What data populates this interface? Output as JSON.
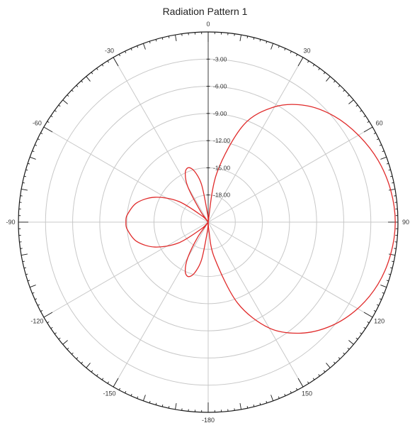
{
  "chart_data": {
    "type": "polar-line",
    "title": "Radiation Pattern 1",
    "angle_tick_labels": [
      {
        "angle": 0,
        "label": "0"
      },
      {
        "angle": 30,
        "label": "30"
      },
      {
        "angle": 60,
        "label": "60"
      },
      {
        "angle": 90,
        "label": "90"
      },
      {
        "angle": 120,
        "label": "120"
      },
      {
        "angle": 150,
        "label": "150"
      },
      {
        "angle": 180,
        "label": "-180"
      },
      {
        "angle": -150,
        "label": "-150"
      },
      {
        "angle": -120,
        "label": "-120"
      },
      {
        "angle": -90,
        "label": "-90"
      },
      {
        "angle": -60,
        "label": "-60"
      },
      {
        "angle": -30,
        "label": "-30"
      }
    ],
    "radial_range_db": [
      -21,
      0
    ],
    "radial_tick_labels": [
      "-3.00",
      "-6.00",
      "-9.00",
      "-12.00",
      "-15.00",
      "-18.00"
    ],
    "radial_tick_values": [
      -3,
      -6,
      -9,
      -12,
      -15,
      -18
    ],
    "grid": true,
    "colors": {
      "series": "#e02a2a",
      "grid": "#c8c8c8",
      "axis": "#1a1a1a"
    },
    "series": [
      {
        "points": [
          {
            "angle": 0,
            "r": -21
          },
          {
            "angle": 10,
            "r": -15.5
          },
          {
            "angle": 20,
            "r": -9.6
          },
          {
            "angle": 30,
            "r": -6.3
          },
          {
            "angle": 40,
            "r": -4.2
          },
          {
            "angle": 50,
            "r": -2.8
          },
          {
            "angle": 60,
            "r": -1.8
          },
          {
            "angle": 70,
            "r": -1.0
          },
          {
            "angle": 80,
            "r": -0.5
          },
          {
            "angle": 90,
            "r": -0.3
          },
          {
            "angle": 100,
            "r": -0.5
          },
          {
            "angle": 110,
            "r": -1.0
          },
          {
            "angle": 120,
            "r": -1.9
          },
          {
            "angle": 130,
            "r": -3.2
          },
          {
            "angle": 140,
            "r": -5.0
          },
          {
            "angle": 150,
            "r": -7.5
          },
          {
            "angle": 160,
            "r": -11.5
          },
          {
            "angle": 170,
            "r": -17.0
          },
          {
            "angle": 175,
            "r": -20.0
          },
          {
            "angle": 180,
            "r": -21
          },
          {
            "angle": -175,
            "r": -20.0
          },
          {
            "angle": -170,
            "r": -16.8
          },
          {
            "angle": -165,
            "r": -15.2
          },
          {
            "angle": -160,
            "r": -14.6
          },
          {
            "angle": -155,
            "r": -15.0
          },
          {
            "angle": -150,
            "r": -16.5
          },
          {
            "angle": -145,
            "r": -19.0
          },
          {
            "angle": -140,
            "r": -21
          },
          {
            "angle": -135,
            "r": -20.0
          },
          {
            "angle": -125,
            "r": -17.0
          },
          {
            "angle": -115,
            "r": -14.5
          },
          {
            "angle": -105,
            "r": -12.8
          },
          {
            "angle": -95,
            "r": -12.0
          },
          {
            "angle": -90,
            "r": -11.9
          },
          {
            "angle": -85,
            "r": -12.0
          },
          {
            "angle": -75,
            "r": -12.8
          },
          {
            "angle": -65,
            "r": -14.5
          },
          {
            "angle": -55,
            "r": -17.0
          },
          {
            "angle": -45,
            "r": -20.0
          },
          {
            "angle": -40,
            "r": -21
          },
          {
            "angle": -35,
            "r": -19.5
          },
          {
            "angle": -30,
            "r": -16.5
          },
          {
            "angle": -25,
            "r": -15.0
          },
          {
            "angle": -20,
            "r": -14.6
          },
          {
            "angle": -15,
            "r": -15.2
          },
          {
            "angle": -10,
            "r": -16.8
          },
          {
            "angle": -5,
            "r": -20.0
          },
          {
            "angle": 0,
            "r": -21
          }
        ]
      }
    ]
  }
}
